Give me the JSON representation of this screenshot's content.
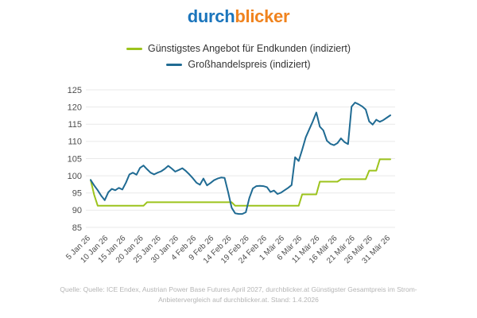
{
  "logo": {
    "part1": "durch",
    "part2": "blicker"
  },
  "colors": {
    "logo_blue": "#1b75bc",
    "logo_orange": "#f0831e",
    "line_green": "#9cc31c",
    "line_blue": "#206b93",
    "grid": "#e9e9e9",
    "axis_text": "#4d4d4d",
    "legend_text": "#333333",
    "footer_text": "#b5b5b5"
  },
  "legend": [
    {
      "label": "Günstigstes Angebot für Endkunden (indiziert)",
      "color_key": "line_green"
    },
    {
      "label": "Großhandelspreis (indiziert)",
      "color_key": "line_blue"
    }
  ],
  "footer": {
    "line1": "Quelle: Quelle: ICE Endex, Austrian Power Base Futures April 2027, durchblicker.at Günstigster Gesamtpreis im Strom-",
    "line2": "Anbietervergleich auf durchblicker.at. Stand: 1.4.2026"
  },
  "chart_data": {
    "type": "line",
    "title": "",
    "xlabel": "",
    "ylabel": "",
    "ylim": [
      85,
      125
    ],
    "y_ticks": [
      85,
      90,
      95,
      100,
      105,
      110,
      115,
      120,
      125
    ],
    "grid": "horizontal gridlines only, no axis lines",
    "legend_position": "top-center",
    "x_unit": "daily values, 5 Jan 26 to 31 Mär 26",
    "x_tick_indices": [
      0,
      5,
      10,
      15,
      20,
      25,
      30,
      35,
      40,
      45,
      50,
      55,
      60,
      65,
      70,
      75,
      80,
      85
    ],
    "x_tick_labels": [
      "5 Jan 26",
      "10 Jan 26",
      "15 Jan 26",
      "20 Jan 26",
      "25 Jan 26",
      "30 Jan 26",
      "4 Feb 26",
      "9 Feb 26",
      "14 Feb 26",
      "19 Feb 26",
      "24 Feb 26",
      "1 Mär 26",
      "6 Mär 26",
      "11 Mär 26",
      "16 Mär 26",
      "21 Mär 26",
      "26 Mär 26",
      "31 Mär 26"
    ],
    "series": [
      {
        "name": "Günstigstes Angebot für Endkunden (indiziert)",
        "color": "#9cc31c",
        "values": [
          98.8,
          94.5,
          91.3,
          91.3,
          91.3,
          91.3,
          91.3,
          91.3,
          91.3,
          91.3,
          91.3,
          91.3,
          91.3,
          91.3,
          91.3,
          91.3,
          92.3,
          92.3,
          92.3,
          92.3,
          92.3,
          92.3,
          92.3,
          92.3,
          92.3,
          92.3,
          92.3,
          92.3,
          92.3,
          92.3,
          92.3,
          92.3,
          92.3,
          92.3,
          92.3,
          92.3,
          92.3,
          92.3,
          92.3,
          92.3,
          92.3,
          91.3,
          91.3,
          91.3,
          91.3,
          91.3,
          91.3,
          91.3,
          91.3,
          91.3,
          91.3,
          91.3,
          91.3,
          91.3,
          91.3,
          91.3,
          91.3,
          91.3,
          91.3,
          91.3,
          94.6,
          94.6,
          94.6,
          94.6,
          94.6,
          98.3,
          98.3,
          98.3,
          98.3,
          98.3,
          98.3,
          99.0,
          99.0,
          99.0,
          99.0,
          99.0,
          99.0,
          99.0,
          99.0,
          101.5,
          101.5,
          101.5,
          104.8,
          104.8,
          104.8,
          104.8
        ]
      },
      {
        "name": "Großhandelspreis (indiziert)",
        "color": "#206b93",
        "values": [
          98.8,
          97.2,
          95.8,
          94.2,
          92.9,
          95.2,
          96.2,
          95.8,
          96.5,
          96.0,
          98.0,
          100.4,
          100.9,
          100.3,
          102.3,
          103.0,
          101.9,
          100.9,
          100.4,
          100.9,
          101.3,
          102.0,
          102.9,
          102.1,
          101.2,
          101.7,
          102.2,
          101.4,
          100.4,
          99.3,
          98.0,
          97.4,
          99.2,
          97.2,
          97.9,
          98.7,
          99.2,
          99.5,
          99.4,
          95.2,
          90.7,
          89.1,
          88.9,
          88.9,
          89.4,
          93.5,
          96.3,
          97.0,
          97.1,
          97.0,
          96.7,
          95.3,
          95.7,
          94.7,
          95.1,
          95.8,
          96.5,
          97.3,
          105.4,
          104.3,
          107.6,
          111.2,
          113.5,
          115.8,
          118.4,
          114.3,
          113.2,
          110.2,
          109.3,
          108.9,
          109.5,
          110.9,
          109.8,
          109.2,
          120.1,
          121.3,
          120.8,
          120.2,
          119.3,
          115.8,
          114.9,
          116.3,
          115.7,
          116.2,
          116.9,
          117.6
        ]
      }
    ]
  }
}
